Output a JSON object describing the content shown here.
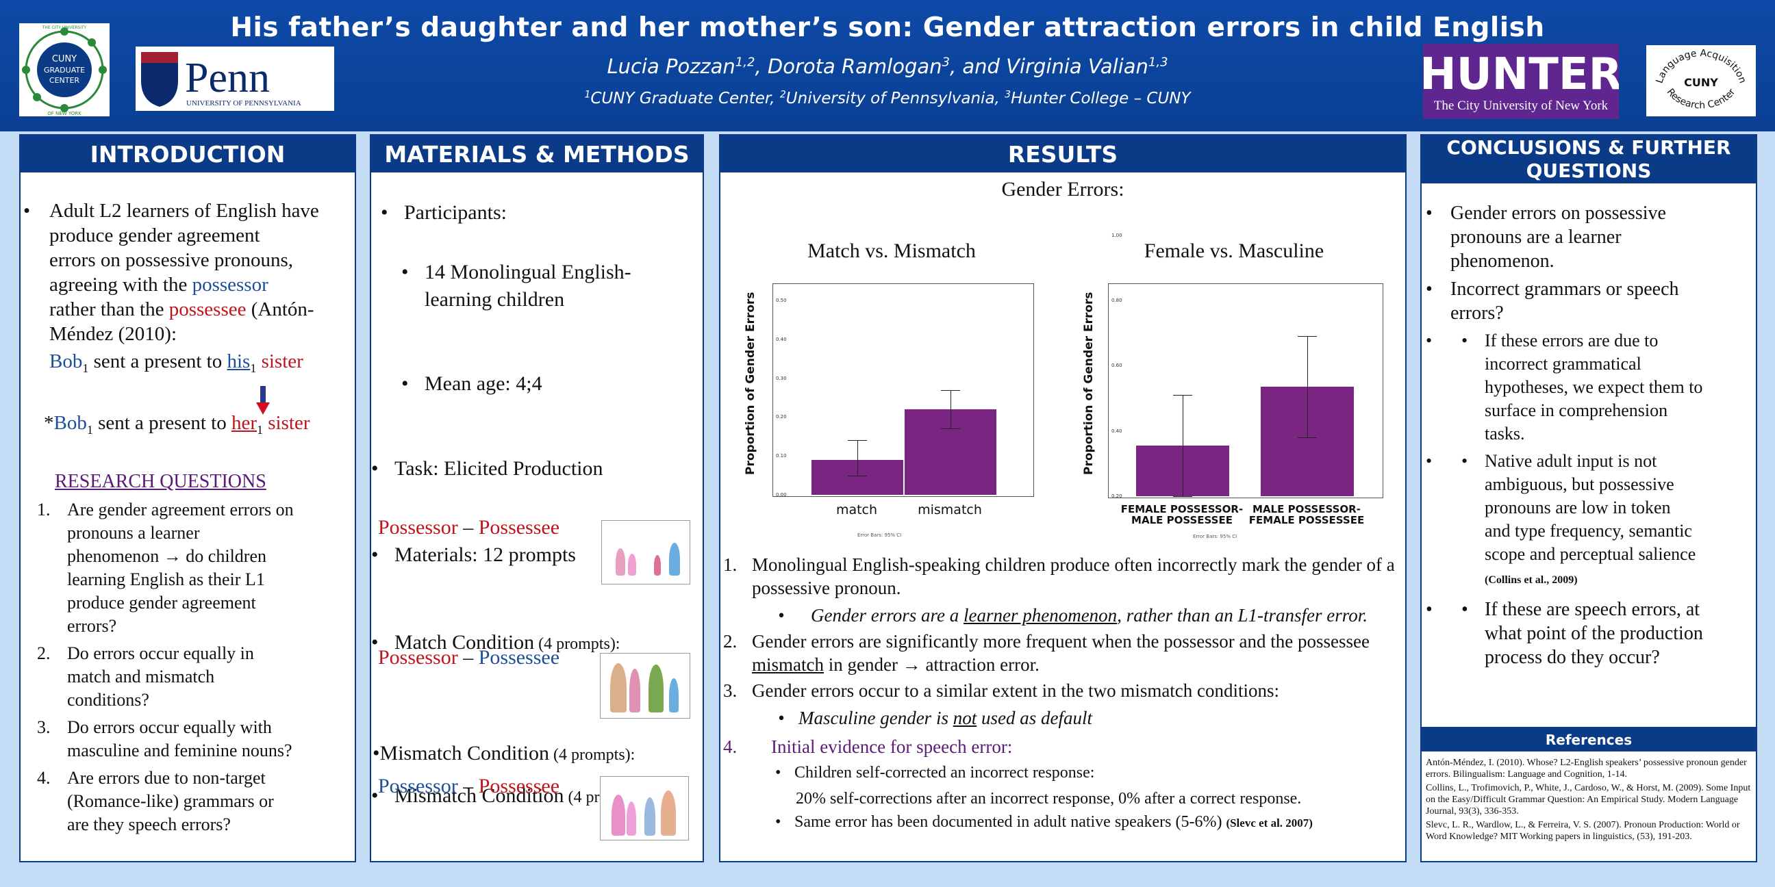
{
  "header": {
    "title": "His father’s daughter and her mother’s son: Gender attraction errors in child English",
    "authors": "Lucia Pozzan1,2, Dorota Ramlogan3, and Virginia Valian1,3",
    "affiliations": "1CUNY Graduate Center,  2University of Pennsylvania, 3Hunter College – CUNY",
    "logos": {
      "cuny": {
        "top": "THE CITY UNIVERSITY",
        "line1": "CUNY",
        "line2": "GRADUATE",
        "line3": "CENTER",
        "bottom": "OF NEW YORK"
      },
      "penn": {
        "word": "Penn",
        "sub": "UNIVERSITY OF PENNSYLVANIA"
      },
      "hunter": {
        "word": "HUNTER",
        "sub": "The City University of New York"
      },
      "larc": {
        "top": "Language Acquisition",
        "mid": "CUNY",
        "bottom": "Research Center"
      }
    }
  },
  "intro": {
    "heading": "INTRODUCTION",
    "bullet": [
      "Adult L2 learners of English have",
      "produce gender agreement",
      "errors on possessive pronouns,",
      "agreeing with the ",
      "possessor",
      "rather than the ",
      "possessee",
      " (Antón-",
      "Méndez (2010):"
    ],
    "ex1": {
      "a": "Bob",
      "sub": "1",
      "b": " sent a present to ",
      "c": "his",
      "d": " sister"
    },
    "ex2": {
      "star": "*",
      "a": "Bob",
      "sub": "1",
      "b": " sent a present to ",
      "c": "her",
      "d": " sister"
    },
    "rq_heading": "RESEARCH QUESTIONS",
    "rqs": [
      {
        "n": "1.",
        "lines": [
          "Are gender agreement errors on",
          "pronouns a learner",
          "phenomenon  → do children",
          "learning English as their L1",
          "produce gender agreement",
          "errors?"
        ]
      },
      {
        "n": "2.",
        "lines": [
          "Do errors occur equally in",
          "match and mismatch",
          "conditions?"
        ]
      },
      {
        "n": "3.",
        "lines": [
          "Do errors occur equally with",
          "masculine and feminine nouns?"
        ]
      },
      {
        "n": "4.",
        "lines": [
          "Are errors due to non-target",
          "(Romance-like) grammars or",
          "are they speech errors?"
        ]
      }
    ]
  },
  "methods": {
    "heading": "MATERIALS & METHODS",
    "participants": "Participants:",
    "p_sub": [
      "14 Monolingual English-",
      "learning children",
      "Mean age: 4;4"
    ],
    "task": "Task: Elicited Production",
    "materials": "Materials: 12 prompts",
    "cond1": {
      "label": "Match Condition",
      "count": " (4 prompts):",
      "a": "Possessor",
      "dash": " – ",
      "b": "Possessee"
    },
    "cond2": {
      "label": "Mismatch Condition",
      "count": " (4 prompts):",
      "a": "Possessor",
      "dash": " – ",
      "b": "Possessee"
    },
    "cond3": {
      "label": "Mismatch Condition",
      "count": " (4 prompts):",
      "a": "Possessor",
      "dash": " – ",
      "b": "Possessee"
    }
  },
  "results": {
    "heading": "RESULTS",
    "subheading": "Gender Errors:",
    "points": [
      {
        "n": "1.",
        "text": "Monolingual English-speaking children produce often incorrectly mark the gender of a possessive pronoun."
      },
      {
        "n": "2.",
        "text": "Gender errors are significantly more frequent when the possessor and the possessee mismatch in gender → attraction error."
      },
      {
        "n": "3.",
        "text": "Gender errors occur to a similar extent in the two mismatch conditions:"
      },
      {
        "n": "4.",
        "text": "Initial evidence for speech error:"
      }
    ],
    "p1_sub": {
      "a": "Gender errors are a ",
      "b": "learner phenomenon",
      "c": ", rather than an L1-transfer error."
    },
    "p3_sub": {
      "a": "Masculine gender is ",
      "b": "not",
      "c": " used as default"
    },
    "p4_sub": [
      "Children self-corrected an incorrect response:",
      "20% self-corrections after an incorrect response, 0% after a correct response.",
      "Same error has been documented in adult native speakers (5-6%)"
    ],
    "p4_cite": "(Slevc  et al. 2007)"
  },
  "chart_data": [
    {
      "type": "bar",
      "title": "Match vs. Mismatch",
      "ylabel": "Proportion of Gender Errors",
      "categories": [
        "match",
        "mismatch"
      ],
      "values": [
        0.09,
        0.22
      ],
      "error_low": [
        0.05,
        0.17
      ],
      "error_high": [
        0.14,
        0.27
      ],
      "ylim": [
        0,
        0.5
      ],
      "yticks": [
        "0.00",
        "0.10",
        "0.20",
        "0.30",
        "0.40",
        "0.50"
      ],
      "footnote": "Error Bars: 95% CI"
    },
    {
      "type": "bar",
      "title": "Female vs. Masculine",
      "ylabel": "Proportion of Gender Errors",
      "categories": [
        "FEMALE POSSESSOR- MALE POSSESSEE",
        "MALE POSSESSOR- FEMALE POSSESSEE"
      ],
      "values": [
        0.355,
        0.535
      ],
      "error_low": [
        0.2,
        0.38
      ],
      "error_high": [
        0.51,
        0.69
      ],
      "ylim": [
        0.2,
        0.8
      ],
      "yticks": [
        "0.20",
        "0.40",
        "0.60",
        "0.80",
        "1.00"
      ],
      "footnote": "Error Bars: 95% CI"
    }
  ],
  "conclusions": {
    "heading1": "CONCLUSIONS & FURTHER",
    "heading2": "QUESTIONS",
    "b1": [
      "Gender errors on possessive",
      "pronouns are a learner",
      "phenomenon."
    ],
    "b2": [
      "Incorrect grammars or speech",
      "errors?"
    ],
    "s1": [
      "If these errors are due to",
      "incorrect grammatical",
      "hypotheses, we expect them to",
      "surface in comprehension",
      "tasks."
    ],
    "s2": [
      "Native adult input is not",
      "ambiguous, but possessive",
      "pronouns are low in token",
      "and type frequency, semantic",
      "scope and perceptual salience"
    ],
    "s2_cite": "(Collins et al., 2009)",
    "s3": [
      "If these are speech errors, at",
      "what point of the production",
      "process do they occur?"
    ],
    "ref_heading": "References",
    "refs": [
      "Antón-Méndez, I. (2010). Whose? L2-English speakers’ possessive pronoun gender errors. Bilingualism: Language and Cognition, 1-14.",
      "Collins, L., Trofimovich, P., White, J., Cardoso, W., & Horst, M. (2009). Some Input on the Easy/Difficult Grammar Question: An Empirical Study. Modern Language Journal, 93(3), 336-353.",
      "Slevc, L. R., Wardlow, L., & Ferreira, V. S. (2007). Pronoun Production: World or Word Knowledge? MIT Working papers in linguistics, (53), 191-203."
    ]
  },
  "colors": {
    "header": "#0b3a86",
    "bar": "#7a2582",
    "red": "#c0141c",
    "blue": "#1c4e9a"
  }
}
